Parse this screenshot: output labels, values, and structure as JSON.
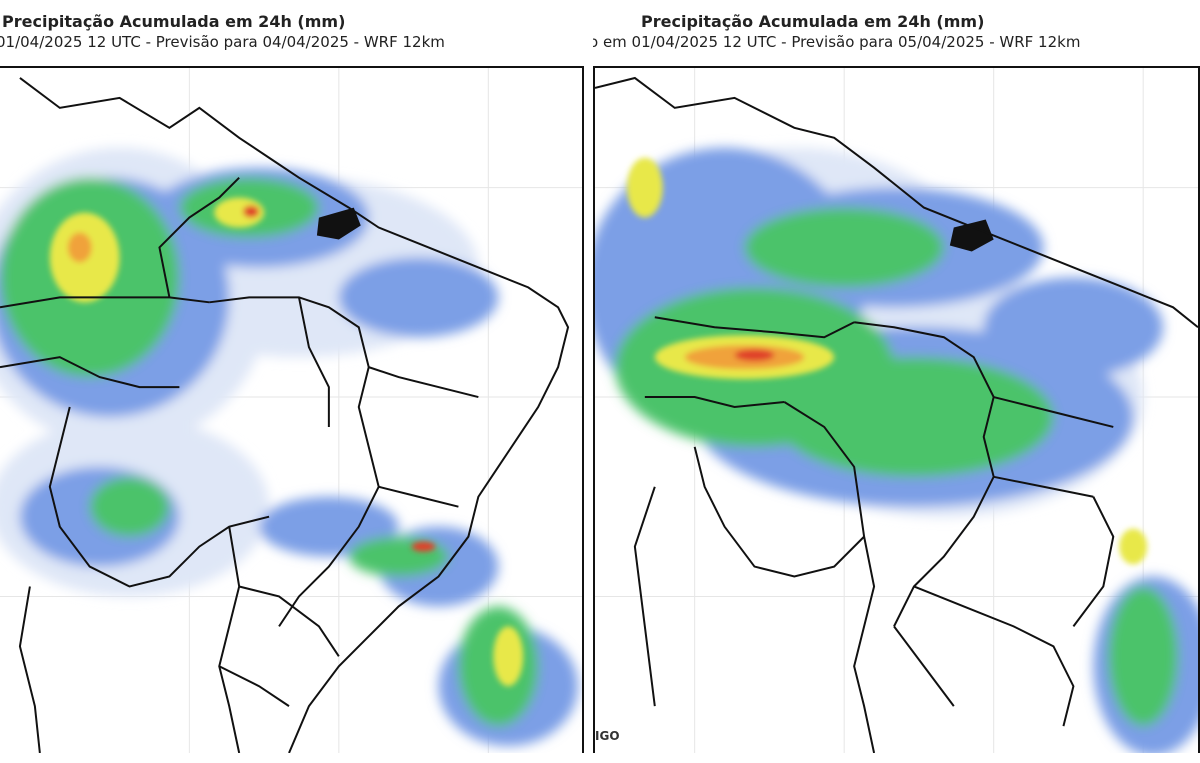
{
  "maps": [
    {
      "title": "Precipitação Acumulada em 24h (mm)",
      "subtitle": "01/04/2025 12 UTC - Previsão para 04/04/2025 - WRF 12km"
    },
    {
      "title": "Precipitação Acumulada em 24h (mm)",
      "subtitle": "o em 01/04/2025 12 UTC - Previsão para 05/04/2025 - WRF 12km",
      "credit": "IGO"
    }
  ],
  "colors": {
    "light": "#dfe7f7",
    "blue": "#7b9fe6",
    "green": "#4cc36b",
    "yellow": "#e8e84a",
    "orange": "#f0a23a",
    "red": "#e0402a",
    "ocean": "#111111",
    "border": "#111111"
  }
}
